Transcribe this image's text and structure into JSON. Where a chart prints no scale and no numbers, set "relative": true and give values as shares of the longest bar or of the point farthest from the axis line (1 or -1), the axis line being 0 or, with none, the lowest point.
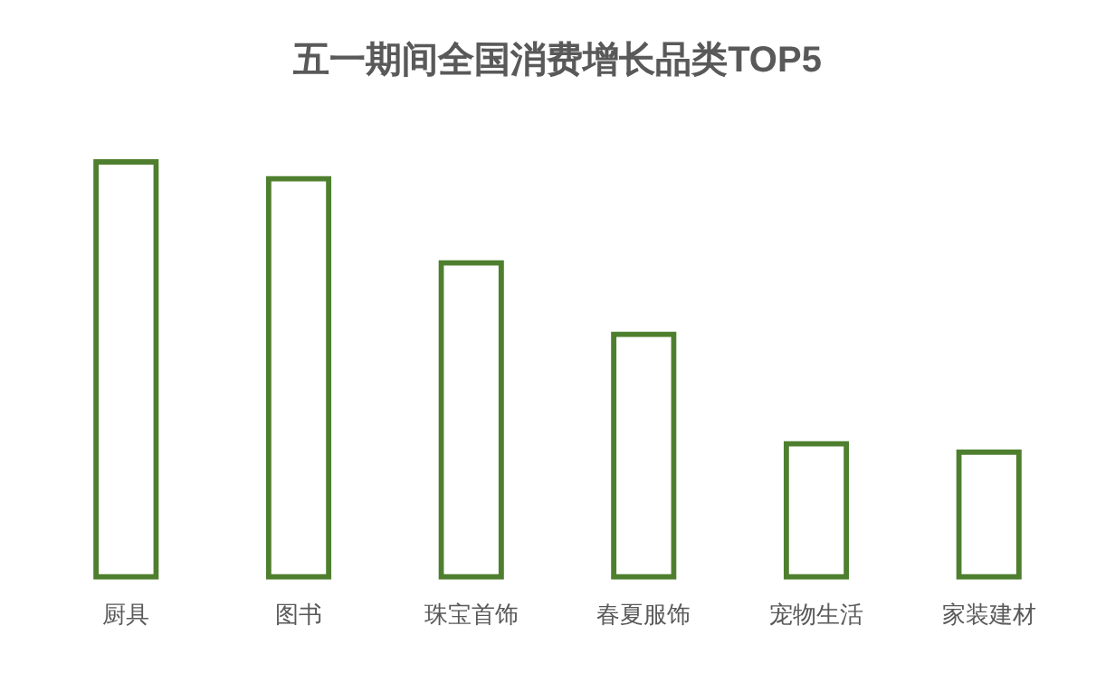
{
  "chart_data": {
    "type": "bar",
    "title": "五一期间全国消费增长品类TOP5",
    "relative": true,
    "categories": [
      "厨具",
      "图书",
      "珠宝首饰",
      "春夏服饰",
      "宠物生活",
      "家装建材"
    ],
    "series": [
      {
        "color": "#4e7f2e",
        "values": [
          1,
          0.96,
          0.76,
          0.59,
          0.33,
          0.31
        ]
      }
    ],
    "grid": false,
    "legend": false
  }
}
